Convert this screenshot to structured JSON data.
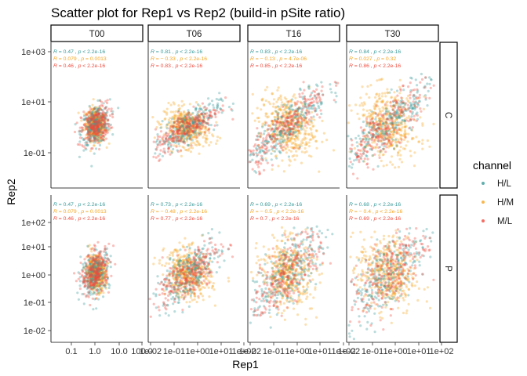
{
  "chart_data": {
    "type": "scatter",
    "title": "Scatter plot for Rep1 vs Rep2 (build-in pSite ratio)",
    "xlabel": "Rep1",
    "ylabel": "Rep2",
    "columns": [
      "T00",
      "T06",
      "T16",
      "T30"
    ],
    "rows": [
      "C",
      "P"
    ],
    "x_scale": "log",
    "y_scale": "log",
    "grid": false,
    "legend": {
      "title": "channel",
      "position": "right",
      "series": [
        {
          "name": "H/L",
          "color": "#3a9a9a"
        },
        {
          "name": "H/M",
          "color": "#f6a623"
        },
        {
          "name": "M/L",
          "color": "#f04a3c"
        }
      ]
    },
    "x_ticks": [
      [
        "0.1",
        "1.0",
        "10.0",
        "100.0"
      ],
      [
        "1e-02",
        "1e-01",
        "1e+00",
        "1e+01",
        "1e+02"
      ],
      [
        "1e-02",
        "1e-01",
        "1e+00",
        "1e+01",
        "1e+02"
      ],
      [
        "1e-02",
        "1e-01",
        "1e+00",
        "1e+01",
        "1e+02"
      ]
    ],
    "y_ticks": {
      "C": [
        "1e+03",
        "1e+01",
        "1e-01"
      ],
      "P": [
        "1e+02",
        "1e+01",
        "1e+00",
        "1e-01",
        "1e-02"
      ]
    },
    "panels": [
      {
        "row": "C",
        "col": "T00",
        "stats": [
          {
            "channel": "H/L",
            "R": "0.47",
            "p": "p < 2.2e-16"
          },
          {
            "channel": "H/M",
            "R": "0.079",
            "p": "p = 0.0013"
          },
          {
            "channel": "M/L",
            "R": "0.46",
            "p": "p < 2.2e-16"
          }
        ]
      },
      {
        "row": "C",
        "col": "T06",
        "stats": [
          {
            "channel": "H/L",
            "R": "0.81",
            "p": "p < 2.2e-16"
          },
          {
            "channel": "H/M",
            "R": "− 0.33",
            "p": "p < 2.2e-16"
          },
          {
            "channel": "M/L",
            "R": "0.83",
            "p": "p < 2.2e-16"
          }
        ]
      },
      {
        "row": "C",
        "col": "T16",
        "stats": [
          {
            "channel": "H/L",
            "R": "0.83",
            "p": "p < 2.2e-16"
          },
          {
            "channel": "H/M",
            "R": "− 0.13",
            "p": "p = 4.7e-06"
          },
          {
            "channel": "M/L",
            "R": "0.85",
            "p": "p < 2.2e-16"
          }
        ]
      },
      {
        "row": "C",
        "col": "T30",
        "stats": [
          {
            "channel": "H/L",
            "R": "0.84",
            "p": "p < 2.2e-16"
          },
          {
            "channel": "H/M",
            "R": "0.027",
            "p": "p = 0.32"
          },
          {
            "channel": "M/L",
            "R": "0.86",
            "p": "p < 2.2e-16"
          }
        ]
      },
      {
        "row": "P",
        "col": "T00",
        "stats": [
          {
            "channel": "H/L",
            "R": "0.47",
            "p": "p < 2.2e-16"
          },
          {
            "channel": "H/M",
            "R": "0.079",
            "p": "p = 0.0013"
          },
          {
            "channel": "M/L",
            "R": "0.46",
            "p": "p < 2.2e-16"
          }
        ]
      },
      {
        "row": "P",
        "col": "T06",
        "stats": [
          {
            "channel": "H/L",
            "R": "0.73",
            "p": "p < 2.2e-16"
          },
          {
            "channel": "H/M",
            "R": "− 0.48",
            "p": "p < 2.2e-16"
          },
          {
            "channel": "M/L",
            "R": "0.77",
            "p": "p < 2.2e-16"
          }
        ]
      },
      {
        "row": "P",
        "col": "T16",
        "stats": [
          {
            "channel": "H/L",
            "R": "0.69",
            "p": "p < 2.2e-16"
          },
          {
            "channel": "H/M",
            "R": "− 0.5",
            "p": "p < 2.2e-16"
          },
          {
            "channel": "M/L",
            "R": "0.7",
            "p": "p < 2.2e-16"
          }
        ]
      },
      {
        "row": "P",
        "col": "T30",
        "stats": [
          {
            "channel": "H/L",
            "R": "0.68",
            "p": "p < 2.2e-16"
          },
          {
            "channel": "H/M",
            "R": "− 0.4",
            "p": "p < 2.2e-16"
          },
          {
            "channel": "M/L",
            "R": "0.69",
            "p": "p < 2.2e-16"
          }
        ]
      }
    ]
  }
}
